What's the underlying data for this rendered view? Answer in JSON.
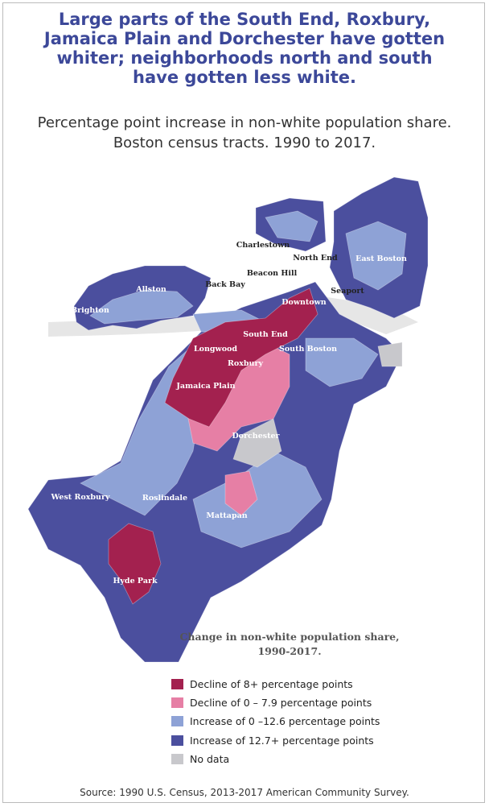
{
  "header": {
    "title": "Large parts of the South End, Roxbury, Jamaica Plain and Dorchester have gotten whiter; neighborhoods north and south have gotten less white.",
    "subtitle": "Percentage point increase in non-white population share. Boston census tracts. 1990 to 2017."
  },
  "map": {
    "labels": [
      "Charlestown",
      "Beacon Hill",
      "North End",
      "East Boston",
      "Back Bay",
      "Allston",
      "Brighton",
      "Seaport",
      "Downtown",
      "South End",
      "South Boston",
      "Longwood",
      "Roxbury",
      "Jamaica Plain",
      "Dorchester",
      "West Roxbury",
      "Roslindale",
      "Mattapan",
      "Hyde Park"
    ]
  },
  "legend": {
    "title": "Change in non-white population share, 1990-2017.",
    "items": [
      {
        "label": "Decline of 8+ percentage points",
        "color": "#a3214f"
      },
      {
        "label": "Decline of 0 – 7.9 percentage points",
        "color": "#e67fa5"
      },
      {
        "label": "Increase of 0 –12.6 percentage points",
        "color": "#8ea2d6"
      },
      {
        "label": "Increase of 12.7+ percentage points",
        "color": "#4b4f9e"
      },
      {
        "label": "No data",
        "color": "#c8c8cc"
      }
    ]
  },
  "source": "Source: 1990 U.S. Census, 2013-2017 American Community Survey."
}
